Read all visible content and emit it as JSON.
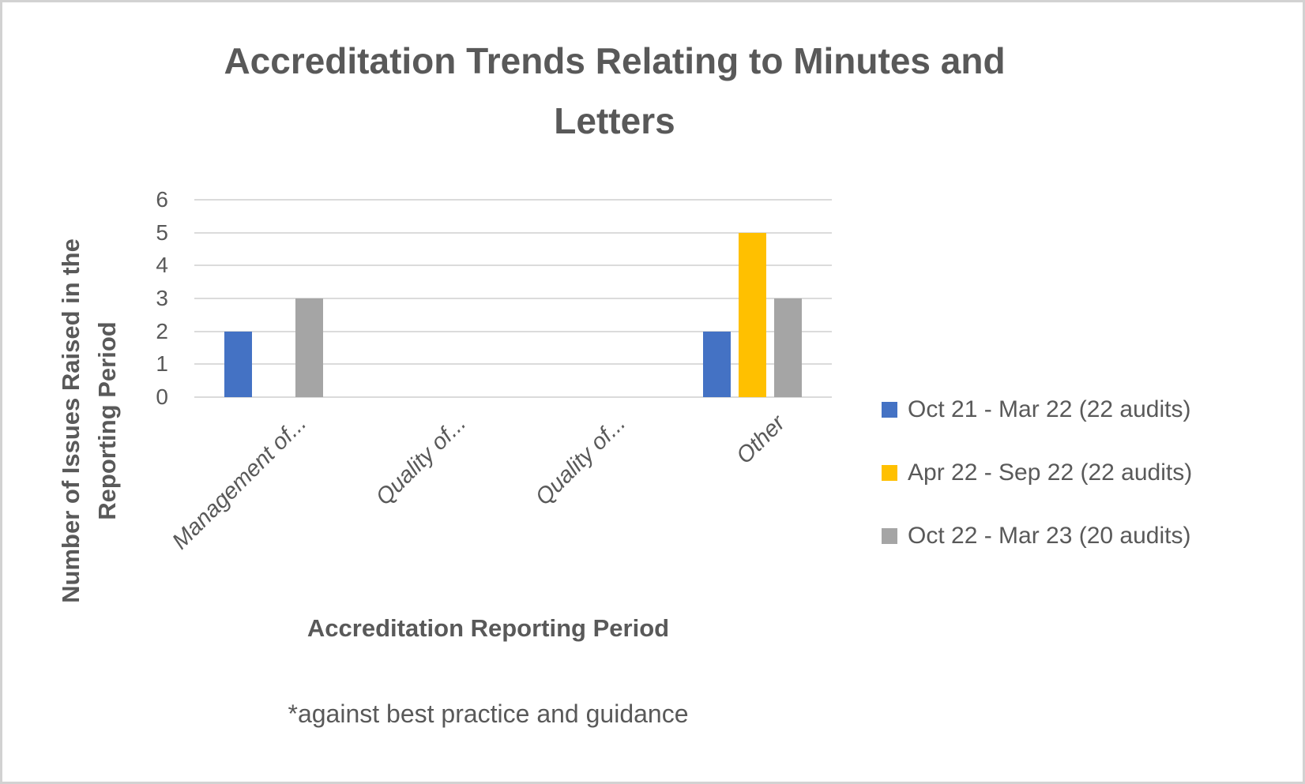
{
  "chart_data": {
    "type": "bar",
    "title": "Accreditation Trends Relating to Minutes and Letters",
    "title_lines": [
      "Accreditation Trends Relating to Minutes and",
      "Letters"
    ],
    "categories": [
      "Management of...",
      "Quality of...",
      "Quality of...",
      "Other"
    ],
    "series": [
      {
        "name": "Oct 21 - Mar 22 (22 audits)",
        "color": "#4472C4",
        "values": [
          2,
          0,
          0,
          2
        ]
      },
      {
        "name": "Apr 22 - Sep 22 (22 audits)",
        "color": "#FFC000",
        "values": [
          0,
          0,
          0,
          5
        ]
      },
      {
        "name": "Oct 22 - Mar 23 (20 audits)",
        "color": "#A5A5A5",
        "values": [
          3,
          0,
          0,
          3
        ]
      }
    ],
    "xlabel": "Accreditation Reporting Period",
    "ylabel": "Number of Issues Raised in the Reporting Period",
    "ylabel_lines": [
      "Number of Issues Raised in the",
      "Reporting Period"
    ],
    "yticks": [
      0,
      1,
      2,
      3,
      4,
      5,
      6
    ],
    "ylim": [
      0,
      6
    ],
    "grid": true,
    "legend_position": "right",
    "footnote": "*against best practice and guidance"
  },
  "colors": {
    "text": "#595959",
    "gridline": "#dbdbdb",
    "frame_border": "#d2d2d2",
    "background": "#ffffff"
  }
}
